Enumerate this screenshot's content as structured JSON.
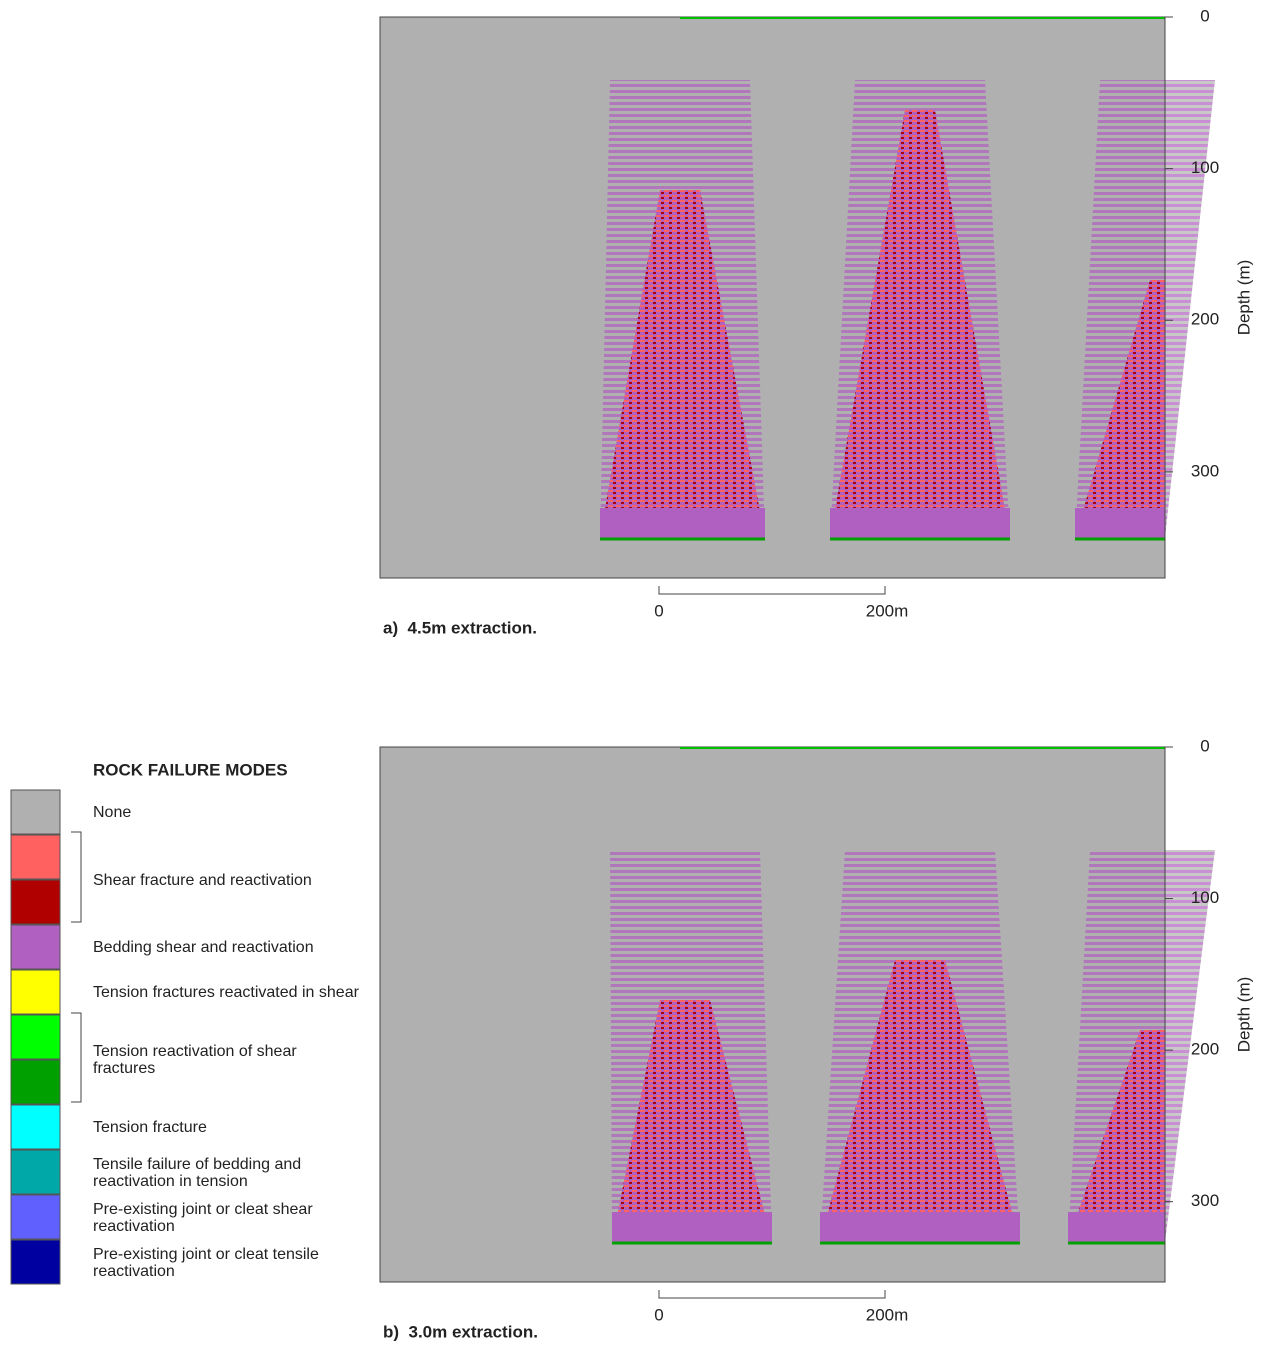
{
  "panels": [
    {
      "caption": "a)  4.5m extraction.",
      "axis_label": "Depth (m)",
      "ylim": [
        0,
        370
      ],
      "yticks": [
        0,
        100,
        200,
        300
      ],
      "scale_labels": [
        "0",
        "200m"
      ]
    },
    {
      "caption": "b)  3.0m extraction.",
      "axis_label": "Depth (m)",
      "ylim": [
        0,
        353
      ],
      "yticks": [
        0,
        100,
        200,
        300
      ],
      "scale_labels": [
        "0",
        "200m"
      ]
    }
  ],
  "legend": {
    "title": "ROCK FAILURE MODES",
    "items": [
      {
        "label": "None",
        "colors": [
          "#b0b0b0"
        ]
      },
      {
        "label": "Shear fracture and reactivation",
        "colors": [
          "#ff6060",
          "#b00000"
        ]
      },
      {
        "label": "Bedding shear and reactivation",
        "colors": [
          "#b060c0"
        ]
      },
      {
        "label": "Tension fractures reactivated in shear",
        "colors": [
          "#ffff00"
        ]
      },
      {
        "label": "Tension reactivation of shear fractures",
        "colors": [
          "#00ff00",
          "#00a000"
        ]
      },
      {
        "label": "Tension fracture",
        "colors": [
          "#00ffff"
        ]
      },
      {
        "label": "Tensile failure of bedding and reactivation in tension",
        "colors": [
          "#00a8a8"
        ]
      },
      {
        "label": "Pre-existing joint or cleat shear reactivation",
        "colors": [
          "#6060ff"
        ]
      },
      {
        "label": "Pre-existing joint or cleat tensile reactivation",
        "colors": [
          "#0000a0"
        ]
      }
    ]
  }
}
